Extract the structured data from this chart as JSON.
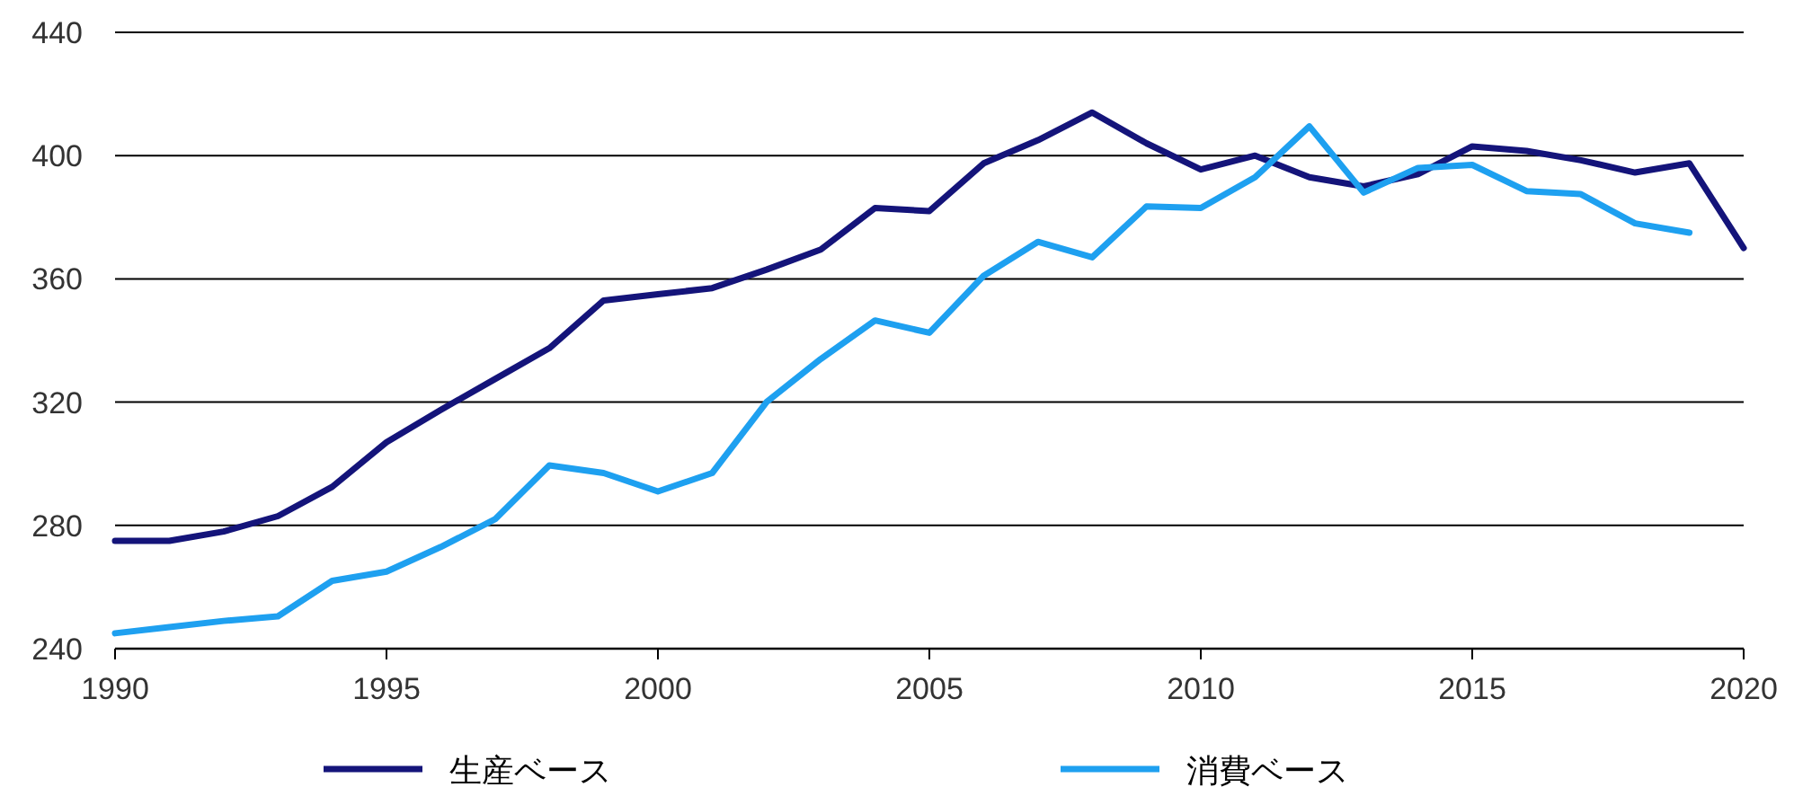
{
  "chart_data": {
    "type": "line",
    "x": [
      1990,
      1991,
      1992,
      1993,
      1994,
      1995,
      1996,
      1997,
      1998,
      1999,
      2000,
      2001,
      2002,
      2003,
      2004,
      2005,
      2006,
      2007,
      2008,
      2009,
      2010,
      2011,
      2012,
      2013,
      2014,
      2015,
      2016,
      2017,
      2018,
      2019,
      2020
    ],
    "series": [
      {
        "name": "生産ベース",
        "color": "#14147a",
        "values": [
          275,
          275,
          278,
          283,
          292.5,
          307,
          317.5,
          327.5,
          337.5,
          353,
          355,
          357,
          363,
          369.5,
          383,
          382,
          397.5,
          405,
          414,
          404,
          395.5,
          400,
          393,
          390,
          394,
          403,
          401.5,
          398.5,
          394.5,
          397.5,
          370
        ]
      },
      {
        "name": "消費ベース",
        "color": "#1ea0f0",
        "values": [
          245,
          247,
          249,
          250.5,
          262,
          265,
          273,
          282,
          299.5,
          297,
          291,
          297,
          320,
          334,
          346.5,
          342.5,
          361,
          372,
          367,
          383.5,
          383,
          393,
          409.5,
          388,
          396,
          397,
          388.5,
          387.5,
          378,
          375,
          null
        ]
      }
    ],
    "xlim": [
      1990,
      2020
    ],
    "xticks": [
      1990,
      1995,
      2000,
      2005,
      2010,
      2015,
      2020
    ],
    "ylim": [
      240,
      440
    ],
    "yticks": [
      240,
      280,
      320,
      360,
      400,
      440
    ],
    "grid": "y",
    "legend": "bottom",
    "marker": "none",
    "line_style": "solid"
  }
}
